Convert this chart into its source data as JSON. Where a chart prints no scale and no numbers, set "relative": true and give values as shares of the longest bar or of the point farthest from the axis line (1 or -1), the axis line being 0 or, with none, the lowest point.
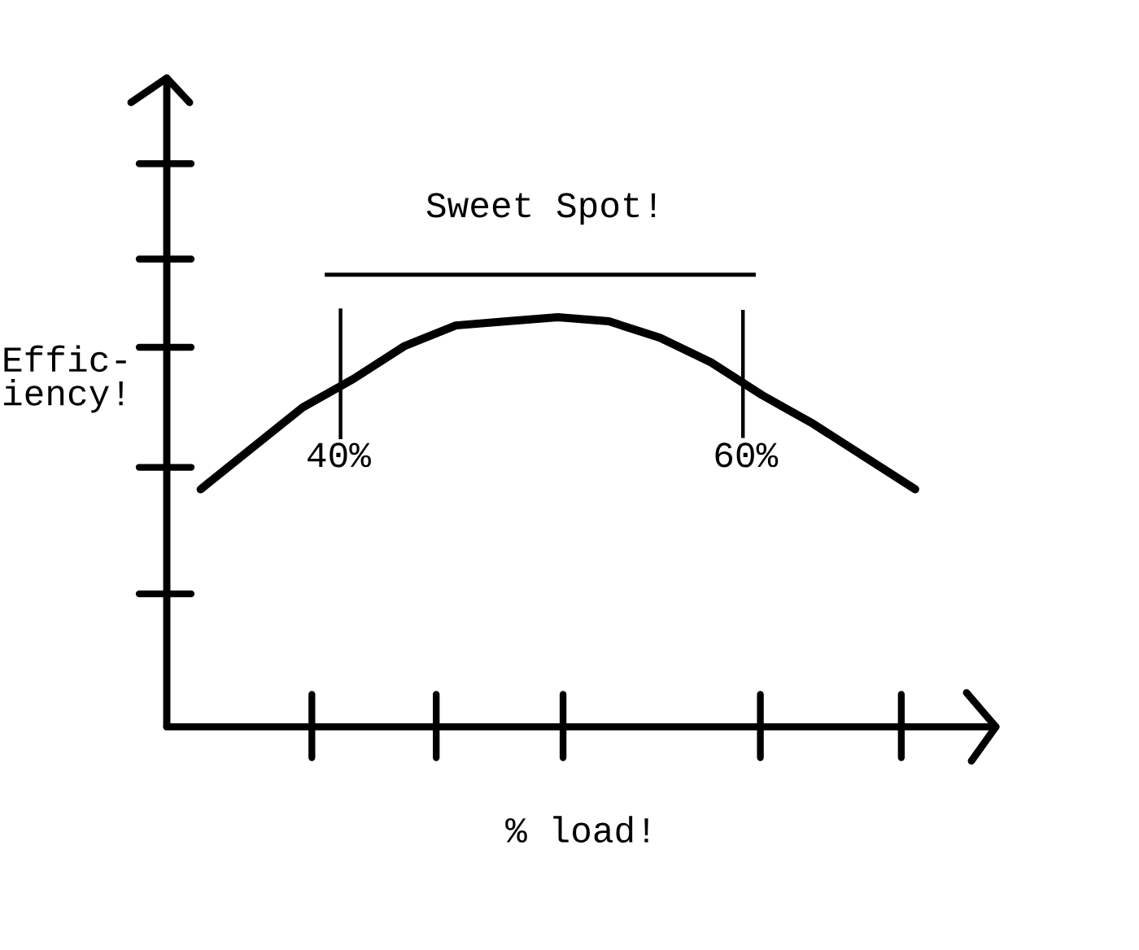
{
  "chart_data": {
    "type": "line",
    "xlabel": "% load!",
    "ylabel": "Effic-\niency!",
    "relative": true,
    "categories": [
      null,
      null,
      null,
      null,
      null,
      null,
      null,
      null,
      null,
      null,
      null,
      null,
      null,
      null,
      null
    ],
    "series": [
      {
        "color": "#000000",
        "values": [
          0.58,
          0.68,
          0.78,
          0.85,
          0.93,
          0.98,
          0.99,
          1,
          0.99,
          0.95,
          0.89,
          0.81,
          0.74,
          0.66,
          0.58
        ]
      }
    ],
    "annotations": [
      "Sweet Spot!",
      "40%",
      "60%"
    ],
    "grid": false,
    "legend": false,
    "marker": "none",
    "line_style": "solid"
  }
}
